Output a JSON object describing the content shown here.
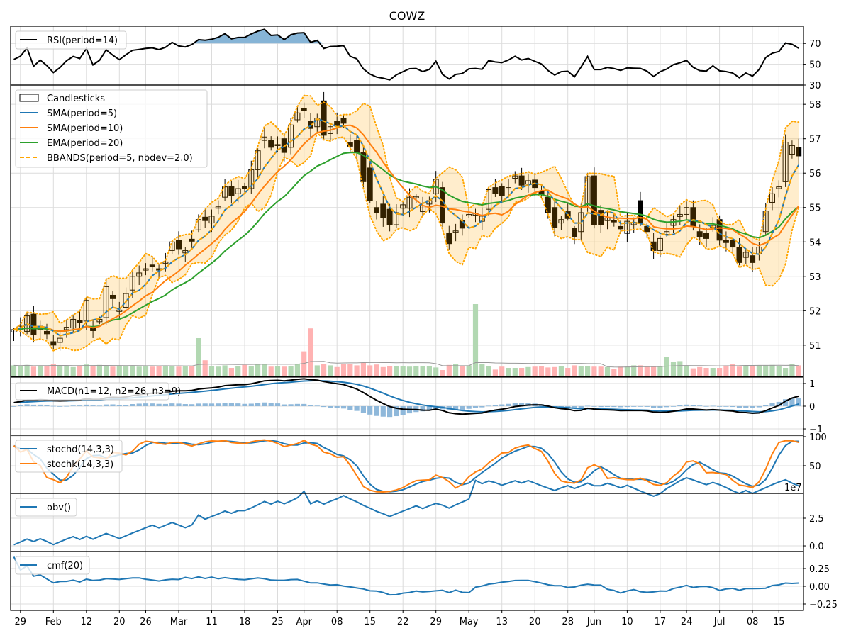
{
  "title": "COWZ",
  "chart_data": {
    "type": "candlestick",
    "title": "COWZ",
    "open": [
      51.38,
      51.45,
      51.4,
      51.9,
      51.45,
      51.4,
      51.1,
      51.08,
      51.45,
      51.5,
      51.72,
      51.7,
      51.5,
      51.68,
      51.8,
      52.45,
      51.98,
      52.1,
      52.6,
      53.0,
      53.18,
      53.33,
      53.22,
      53.38,
      53.75,
      54.05,
      53.68,
      54.08,
      54.35,
      54.72,
      54.55,
      54.98,
      55.3,
      55.62,
      55.4,
      55.62,
      55.55,
      56.1,
      56.95,
      56.95,
      56.8,
      57.0,
      56.75,
      57.55,
      57.88,
      57.5,
      57.35,
      58.1,
      57.15,
      57.5,
      57.6,
      56.88,
      56.95,
      56.6,
      56.15,
      55.0,
      55.1,
      54.95,
      54.5,
      54.98,
      54.98,
      55.28,
      54.88,
      55.1,
      55.4,
      55.58,
      54.25,
      54.28,
      54.62,
      54.76,
      54.78,
      54.6,
      54.95,
      55.58,
      55.62,
      55.54,
      55.85,
      55.92,
      55.68,
      55.8,
      55.46,
      55.3,
      55.0,
      54.55,
      54.88,
      54.4,
      54.3,
      55.05,
      55.92,
      54.92,
      54.62,
      54.62,
      54.45,
      54.25,
      54.5,
      55.2,
      54.45,
      54.0,
      53.75,
      54.22,
      54.48,
      54.74,
      54.8,
      55.0,
      54.3,
      54.25,
      54.42,
      54.65,
      54.05,
      54.05,
      53.85,
      53.55,
      53.6,
      53.65,
      54.3,
      55.15,
      55.55,
      55.75,
      56.55,
      56.75
    ],
    "close": [
      51.45,
      51.55,
      51.85,
      51.3,
      51.55,
      51.33,
      51.0,
      51.2,
      51.52,
      51.75,
      51.66,
      52.3,
      51.42,
      51.75,
      52.7,
      52.35,
      52.02,
      52.5,
      53.0,
      53.1,
      53.22,
      53.28,
      53.18,
      53.42,
      54.0,
      53.8,
      53.75,
      54.02,
      54.65,
      54.62,
      54.75,
      55.02,
      55.6,
      55.35,
      55.55,
      55.55,
      56.1,
      56.65,
      57.05,
      56.75,
      56.83,
      56.6,
      57.4,
      57.75,
      57.82,
      57.3,
      57.6,
      57.1,
      57.35,
      57.38,
      57.45,
      56.78,
      56.6,
      55.75,
      55.2,
      54.85,
      54.7,
      54.5,
      54.85,
      55.08,
      55.3,
      55.32,
      55.05,
      55.2,
      55.82,
      54.55,
      53.95,
      54.32,
      54.4,
      54.8,
      54.83,
      54.75,
      55.52,
      55.4,
      55.35,
      55.58,
      55.92,
      55.65,
      55.78,
      55.58,
      55.38,
      54.85,
      54.42,
      54.65,
      54.68,
      54.15,
      54.85,
      55.9,
      54.5,
      54.5,
      54.7,
      54.58,
      54.38,
      54.6,
      54.57,
      54.55,
      54.3,
      53.75,
      54.1,
      54.3,
      54.65,
      54.8,
      55.0,
      54.45,
      54.15,
      54.1,
      54.48,
      54.05,
      53.98,
      53.85,
      53.4,
      53.7,
      53.4,
      53.85,
      54.9,
      55.4,
      55.6,
      56.9,
      56.8,
      56.5
    ],
    "volume_millions": [
      2.6,
      2.5,
      2.7,
      2.3,
      2.6,
      2.5,
      2.9,
      2.6,
      2.5,
      2.2,
      2.6,
      2.8,
      2.6,
      2.7,
      2.6,
      2.3,
      2.4,
      2.5,
      2.6,
      2.3,
      2.4,
      2.3,
      2.5,
      2.4,
      2.5,
      2.3,
      2.4,
      2.5,
      9.0,
      3.8,
      2.4,
      2.3,
      2.6,
      2.0,
      2.4,
      2.7,
      2.5,
      2.8,
      3.0,
      2.3,
      2.5,
      2.3,
      2.5,
      2.9,
      5.9,
      11.3,
      2.6,
      2.9,
      2.6,
      2.2,
      2.9,
      3.0,
      2.6,
      3.2,
      2.6,
      2.8,
      2.2,
      2.5,
      2.5,
      2.4,
      2.3,
      2.5,
      2.5,
      2.5,
      2.1,
      1.5,
      2.7,
      3.0,
      2.5,
      2.6,
      17.0,
      3.0,
      2.5,
      1.6,
      2.3,
      2.0,
      2.0,
      2.0,
      2.2,
      2.3,
      2.4,
      2.1,
      2.2,
      2.4,
      2.0,
      2.6,
      2.4,
      2.4,
      2.3,
      2.3,
      2.2,
      1.8,
      2.3,
      2.3,
      2.6,
      2.6,
      2.3,
      2.3,
      2.3,
      4.6,
      3.4,
      3.6,
      2.6,
      1.9,
      2.2,
      2.0,
      2.0,
      2.0,
      2.6,
      3.0,
      2.3,
      2.6,
      2.6,
      2.6,
      2.6,
      2.7,
      2.4,
      2.0,
      3.0,
      2.6
    ],
    "x_ticks": [
      {
        "i": 1,
        "label": "29"
      },
      {
        "i": 6,
        "label": "Feb"
      },
      {
        "i": 11,
        "label": "12"
      },
      {
        "i": 16,
        "label": "20"
      },
      {
        "i": 20,
        "label": "26"
      },
      {
        "i": 25,
        "label": "Mar"
      },
      {
        "i": 30,
        "label": "11"
      },
      {
        "i": 35,
        "label": "18"
      },
      {
        "i": 40,
        "label": "25"
      },
      {
        "i": 44,
        "label": "Apr"
      },
      {
        "i": 49,
        "label": "08"
      },
      {
        "i": 54,
        "label": "15"
      },
      {
        "i": 59,
        "label": "22"
      },
      {
        "i": 64,
        "label": "29"
      },
      {
        "i": 69,
        "label": "May"
      },
      {
        "i": 74,
        "label": "13"
      },
      {
        "i": 79,
        "label": "20"
      },
      {
        "i": 84,
        "label": "28"
      },
      {
        "i": 88,
        "label": "Jun"
      },
      {
        "i": 93,
        "label": "10"
      },
      {
        "i": 98,
        "label": "17"
      },
      {
        "i": 102,
        "label": "24"
      },
      {
        "i": 107,
        "label": "Jul"
      },
      {
        "i": 112,
        "label": "08"
      },
      {
        "i": 116,
        "label": "15"
      }
    ],
    "panels": {
      "rsi": {
        "legend": [
          "RSI(period=14)"
        ],
        "ylim": [
          30,
          86.5
        ],
        "yticks": [
          {
            "v": 70,
            "label": "70"
          },
          {
            "v": 50,
            "label": "50"
          },
          {
            "v": 30,
            "label": "30"
          }
        ],
        "overbought": 70
      },
      "main": {
        "legend": [
          "Candlesticks",
          "SMA(period=5)",
          "SMA(period=10)",
          "EMA(period=20)",
          "BBANDS(period=5, nbdev=2.0)"
        ],
        "ylim": [
          50.09,
          58.56
        ],
        "yticks": [
          {
            "v": 58,
            "label": "58"
          },
          {
            "v": 57,
            "label": "57"
          },
          {
            "v": 56,
            "label": "56"
          },
          {
            "v": 55,
            "label": "55"
          },
          {
            "v": 54,
            "label": "54"
          },
          {
            "v": 53,
            "label": "53"
          },
          {
            "v": 52,
            "label": "52"
          },
          {
            "v": 51,
            "label": "51"
          }
        ]
      },
      "macd": {
        "legend": [
          "MACD(n1=12, n2=26, n3=9)"
        ],
        "ylim": [
          -1.28,
          1.28
        ],
        "yticks": [
          {
            "v": 1,
            "label": "1"
          },
          {
            "v": 0,
            "label": "0"
          },
          {
            "v": -1,
            "label": "−1"
          }
        ]
      },
      "stoch": {
        "legend": [
          "stochd(14,3,3)",
          "stochk(14,3,3)"
        ],
        "ylim": [
          2.4,
          102.4
        ],
        "yticks": [
          {
            "v": 100,
            "label": "100"
          },
          {
            "v": 50,
            "label": "50"
          }
        ]
      },
      "obv": {
        "legend": [
          "obv()"
        ],
        "ylim": [
          -0.51,
          4.74
        ],
        "offset_label": "1e7",
        "yticks": [
          {
            "v": 2.5,
            "label": "2.5"
          },
          {
            "v": 0,
            "label": "0.0"
          }
        ]
      },
      "cmf": {
        "legend": [
          "cmf(20)"
        ],
        "ylim": [
          -0.34,
          0.49
        ],
        "yticks": [
          {
            "v": 0.25,
            "label": "0.25"
          },
          {
            "v": 0,
            "label": "0.00"
          },
          {
            "v": -0.25,
            "label": "−0.25"
          }
        ]
      }
    },
    "colors": {
      "sma5": "#1f77b4",
      "sma10": "#ff7f0e",
      "ema20": "#2ca02c",
      "bbands": "#ffa500",
      "candle_down": "#000000",
      "vol_up": "#b2d8b2",
      "vol_down": "#ffb2b2",
      "rsi": "#000000",
      "rsi_fill": "#86b4d6",
      "macd": "#000000",
      "signal": "#1f77b4",
      "hist": "#8fb8da",
      "stochd": "#1f77b4",
      "stochk": "#ff7f0e",
      "obv": "#1f77b4",
      "cmf": "#1f77b4"
    }
  }
}
